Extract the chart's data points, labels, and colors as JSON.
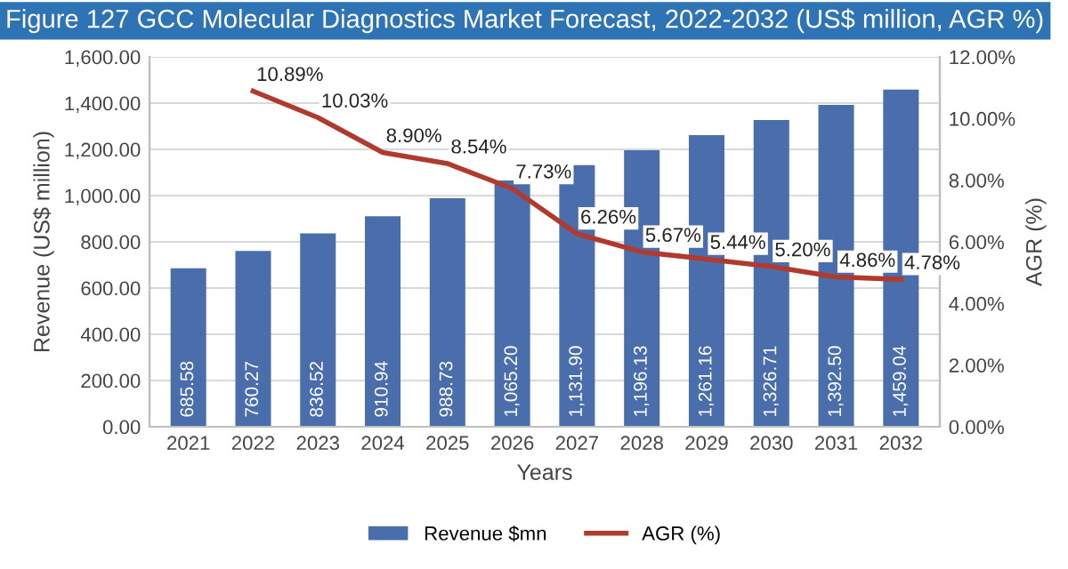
{
  "chart_data": {
    "type": "bar",
    "title": "Figure 127 GCC Molecular Diagnostics Market Forecast, 2022-2032 (US$ million, AGR %)",
    "xlabel": "Years",
    "ylabel": "Revenue (US$ million)",
    "y2label": "AGR (%)",
    "categories": [
      "2021",
      "2022",
      "2023",
      "2024",
      "2025",
      "2026",
      "2027",
      "2028",
      "2029",
      "2030",
      "2031",
      "2032"
    ],
    "series": [
      {
        "name": "Revenue $mn",
        "color": "#4a6eab",
        "values": [
          685.58,
          760.27,
          836.52,
          910.94,
          988.73,
          1065.2,
          1131.9,
          1196.13,
          1261.16,
          1326.71,
          1392.5,
          1459.04
        ],
        "value_labels": [
          "685.58",
          "760.27",
          "836.52",
          "910.94",
          "988.73",
          "1,065.20",
          "1,131.90",
          "1,196.13",
          "1,261.16",
          "1,326.71",
          "1,392.50",
          "1,459.04"
        ]
      },
      {
        "name": "AGR (%)",
        "type": "line",
        "axis": "y2",
        "color": "#b03a2e",
        "values": [
          null,
          10.89,
          10.03,
          8.9,
          8.54,
          7.73,
          6.26,
          5.67,
          5.44,
          5.2,
          4.86,
          4.78
        ],
        "value_labels": [
          null,
          "10.89%",
          "10.03%",
          "8.90%",
          "8.54%",
          "7.73%",
          "6.26%",
          "5.67%",
          "5.44%",
          "5.20%",
          "4.86%",
          "4.78%"
        ]
      }
    ],
    "ylim": [
      0,
      1600
    ],
    "yticks": [
      {
        "value": 0,
        "label": "0.00"
      },
      {
        "value": 200,
        "label": "200.00"
      },
      {
        "value": 400,
        "label": "400.00"
      },
      {
        "value": 600,
        "label": "600.00"
      },
      {
        "value": 800,
        "label": "800.00"
      },
      {
        "value": 1000,
        "label": "1,000.00"
      },
      {
        "value": 1200,
        "label": "1,200.00"
      },
      {
        "value": 1400,
        "label": "1,400.00"
      },
      {
        "value": 1600,
        "label": "1,600.00"
      }
    ],
    "y2lim": [
      0,
      12
    ],
    "y2ticks": [
      {
        "value": 0,
        "label": "0.00%"
      },
      {
        "value": 2,
        "label": "2.00%"
      },
      {
        "value": 4,
        "label": "4.00%"
      },
      {
        "value": 6,
        "label": "6.00%"
      },
      {
        "value": 8,
        "label": "8.00%"
      },
      {
        "value": 10,
        "label": "10.00%"
      },
      {
        "value": 12,
        "label": "12.00%"
      }
    ],
    "grid": "y",
    "legend": "bottom",
    "marker": "none",
    "line_style": "solid"
  }
}
